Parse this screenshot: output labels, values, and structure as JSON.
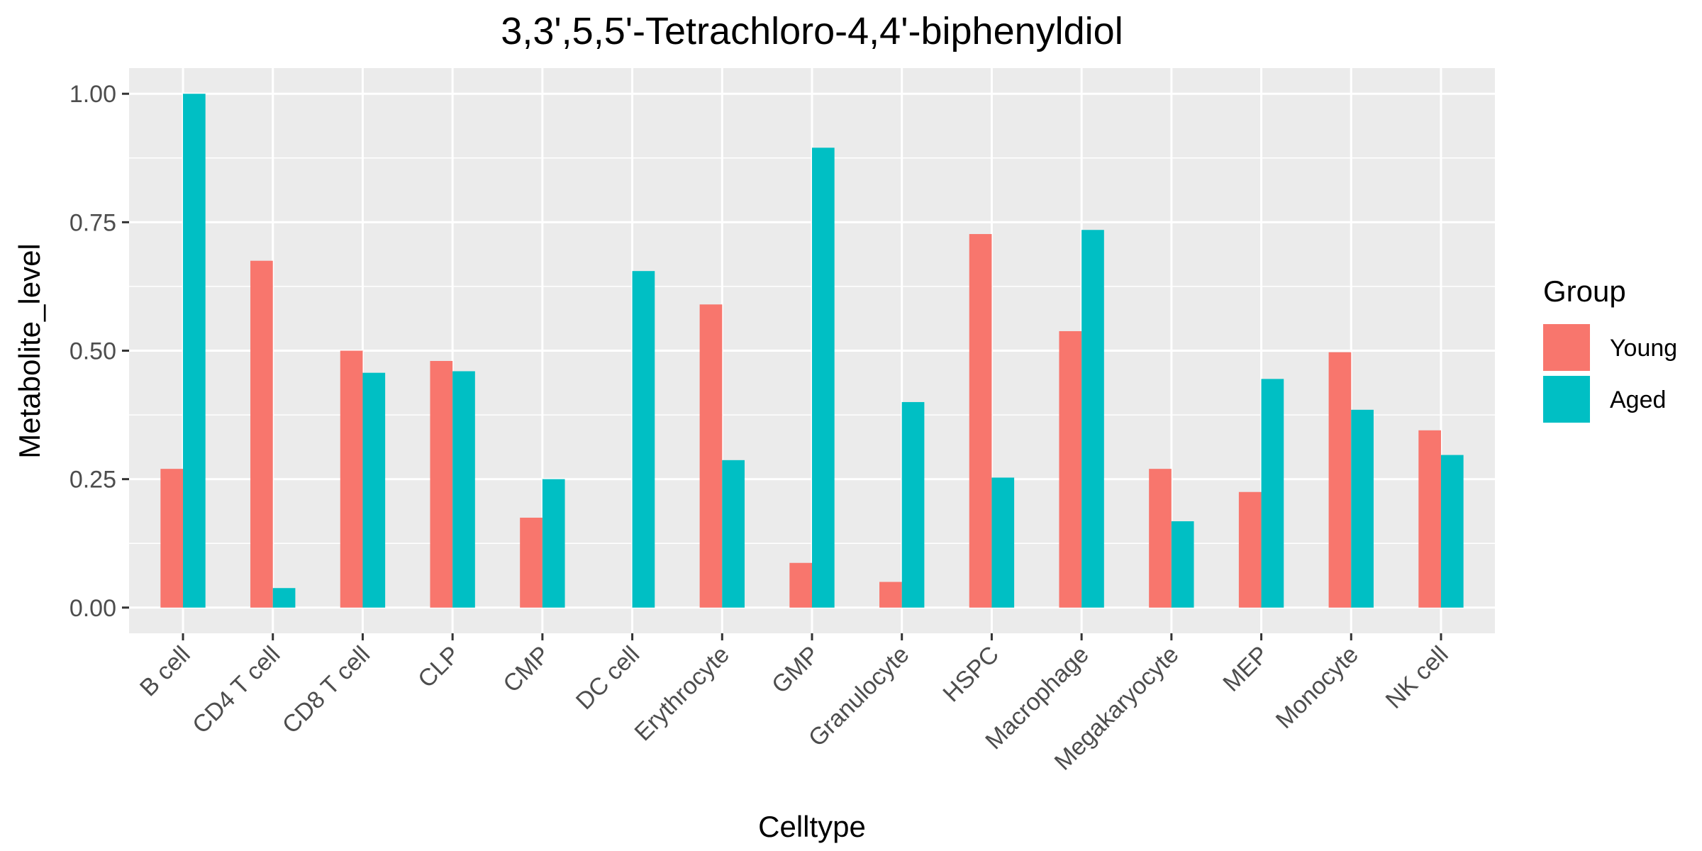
{
  "chart_data": {
    "type": "bar",
    "title": "3,3',5,5'-Tetrachloro-4,4'-biphenyldiol",
    "xlabel": "Celltype",
    "ylabel": "Metabolite_level",
    "categories": [
      "B cell",
      "CD4 T cell",
      "CD8 T cell",
      "CLP",
      "CMP",
      "DC cell",
      "Erythrocyte",
      "GMP",
      "Granulocyte",
      "HSPC",
      "Macrophage",
      "Megakaryocyte",
      "MEP",
      "Monocyte",
      "NK cell"
    ],
    "series": [
      {
        "name": "Young",
        "color": "#F8766D",
        "values": [
          0.27,
          0.675,
          0.5,
          0.48,
          0.175,
          0.0,
          0.59,
          0.087,
          0.05,
          0.727,
          0.538,
          0.27,
          0.225,
          0.497,
          0.345
        ]
      },
      {
        "name": "Aged",
        "color": "#00BFC4",
        "values": [
          1.0,
          0.038,
          0.457,
          0.46,
          0.25,
          0.655,
          0.287,
          0.895,
          0.4,
          0.253,
          0.735,
          0.168,
          0.445,
          0.385,
          0.297
        ]
      }
    ],
    "ylim": [
      -0.05,
      1.05
    ],
    "yticks": [
      0,
      0.25,
      0.5,
      0.75,
      1.0
    ],
    "ytick_labels": [
      "0.00",
      "0.25",
      "0.50",
      "0.75",
      "1.00"
    ],
    "grid": true,
    "legend": {
      "title": "Group",
      "position": "right"
    },
    "panel_background": "#EBEBEB",
    "grid_color": "#FFFFFF"
  }
}
